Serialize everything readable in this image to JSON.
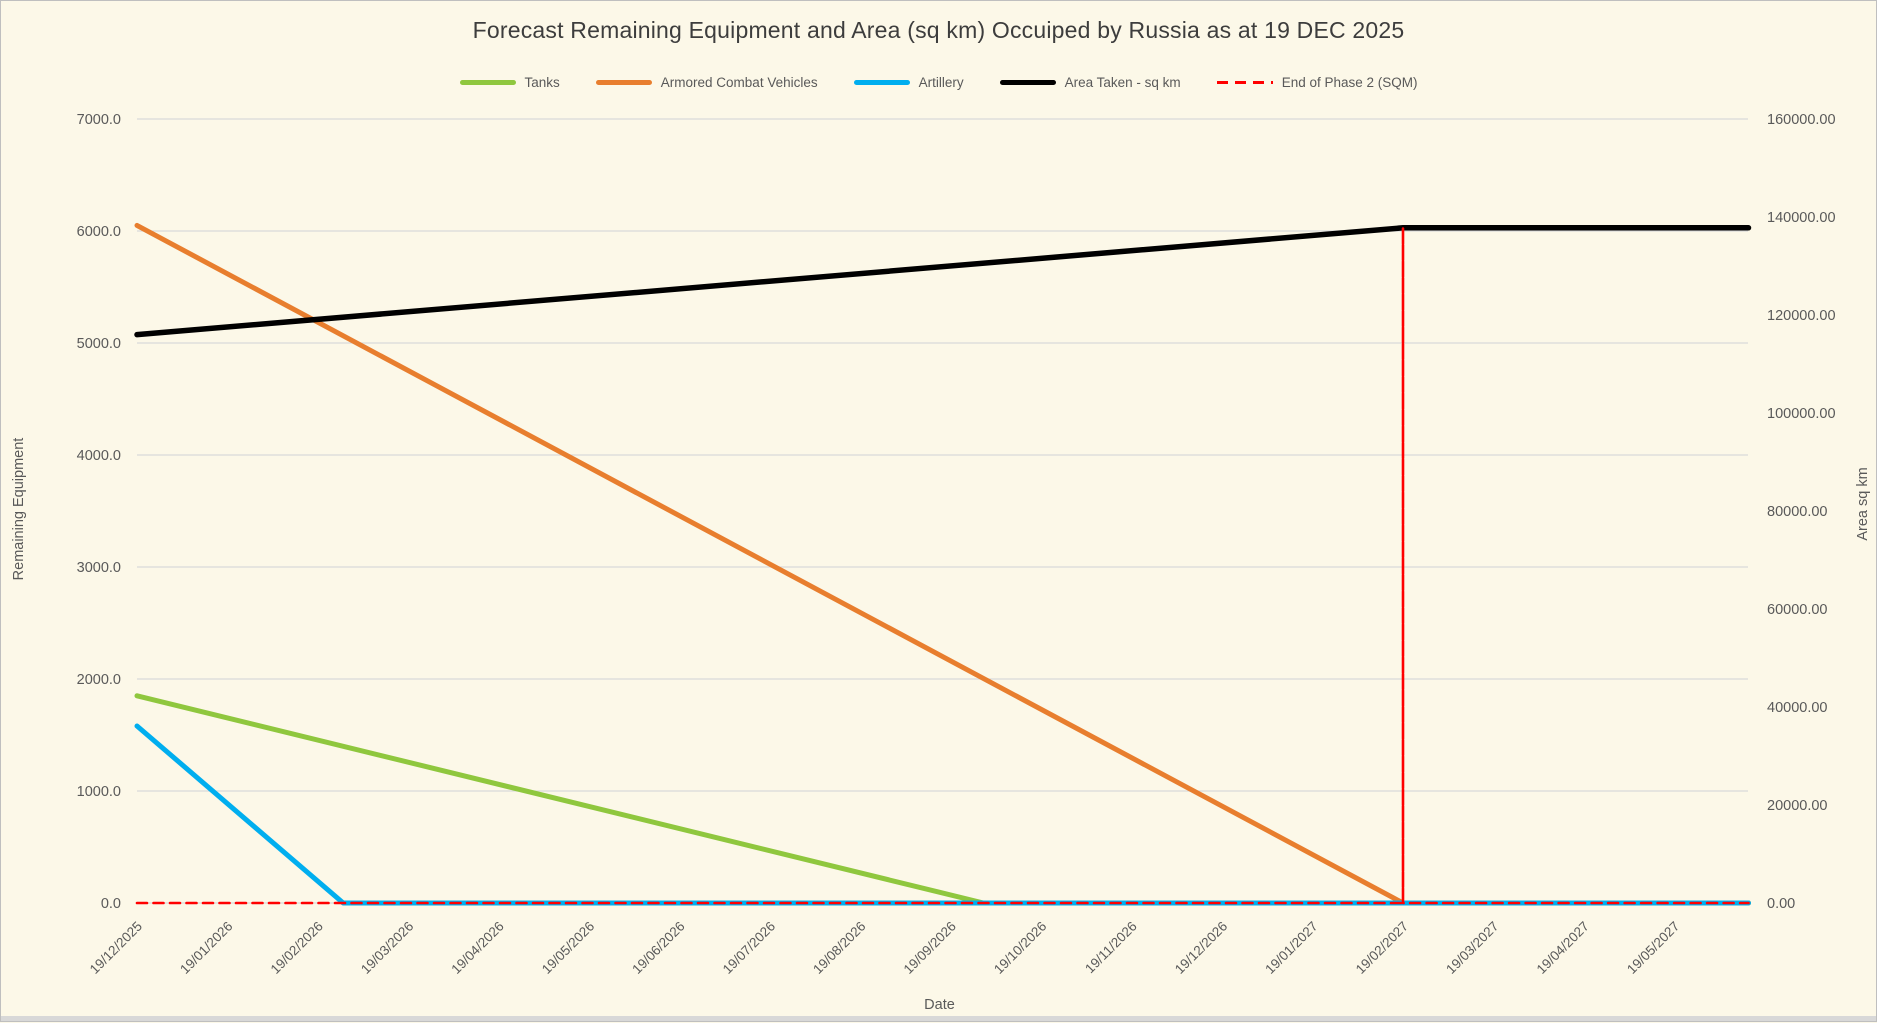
{
  "chart_data": {
    "type": "line",
    "title": "Forecast Remaining Equipment and Area (sq km) Occuiped by Russia as at 19 DEC 2025",
    "x_axis": {
      "label": "Date",
      "categories": [
        "19/12/2025",
        "19/01/2026",
        "19/02/2026",
        "19/03/2026",
        "19/04/2026",
        "19/05/2026",
        "19/06/2026",
        "19/07/2026",
        "19/08/2026",
        "19/09/2026",
        "19/10/2026",
        "19/11/2026",
        "19/12/2026",
        "19/01/2027",
        "19/02/2027",
        "19/03/2027",
        "19/04/2027",
        "19/05/2027"
      ],
      "tick_rotation_deg": -45,
      "axis_extends_months_past_last_label": 0.82
    },
    "y_left": {
      "label": "Remaining Equipment",
      "min": 0,
      "max": 7000,
      "tick_step": 1000,
      "tick_labels": [
        "0.0",
        "1000.0",
        "2000.0",
        "3000.0",
        "4000.0",
        "5000.0",
        "6000.0",
        "7000.0"
      ]
    },
    "y_right": {
      "label": "Area sq km",
      "min": 0,
      "max": 160000,
      "tick_step": 20000,
      "tick_labels": [
        "0.00",
        "20000.00",
        "40000.00",
        "60000.00",
        "80000.00",
        "100000.00",
        "120000.00",
        "140000.00",
        "160000.00"
      ]
    },
    "grid": "horizontal-only",
    "legend_position": "top",
    "series": [
      {
        "name": "Tanks",
        "axis": "left",
        "color": "#8FC73E",
        "style": "solid",
        "width": 5,
        "points_month_value": [
          [
            0,
            1850
          ],
          [
            9.36,
            0
          ],
          [
            17.82,
            0
          ]
        ],
        "description": "Linear decline from ~1850 at 19/12/2025 to 0 just after 19/09/2026, then flat at 0"
      },
      {
        "name": "Armored Combat Vehicles",
        "axis": "left",
        "color": "#E87E2E",
        "style": "solid",
        "width": 5,
        "points_month_value": [
          [
            0,
            6050
          ],
          [
            14,
            0
          ],
          [
            17.82,
            0
          ]
        ],
        "description": "Linear decline from ~6050 at 19/12/2025 to 0 at 19/02/2027, then flat at 0"
      },
      {
        "name": "Artillery",
        "axis": "left",
        "color": "#00AEEF",
        "style": "solid",
        "width": 5,
        "points_month_value": [
          [
            0,
            1580
          ],
          [
            2.28,
            0
          ],
          [
            17.82,
            0
          ]
        ],
        "description": "Linear decline from ~1580 at 19/12/2025 to 0 in late Feb 2026, then flat at 0"
      },
      {
        "name": "Area Taken - sq km",
        "axis": "right",
        "color": "#000000",
        "style": "solid",
        "width": 5.5,
        "points_month_value": [
          [
            0,
            116000
          ],
          [
            14,
            137800
          ],
          [
            17.82,
            137800
          ]
        ],
        "description": "Linear rise from ~116000 sq km at 19/12/2025 to ~137800 at 19/02/2027, then flat"
      },
      {
        "name": "End of Phase 2 (SQM)",
        "axis": "right",
        "color": "#FF0000",
        "style": "dashed",
        "width": 2.6,
        "points_month_value": [
          [
            0,
            0
          ],
          [
            14,
            0
          ],
          [
            14,
            137800
          ],
          [
            14,
            0
          ],
          [
            17.82,
            0
          ]
        ],
        "description": "Zero baseline across the chart with a vertical dashed spike to ~137800 at 19/02/2027"
      }
    ],
    "colors": {
      "background": "#FCF8E8",
      "gridline": "#D9D9D9",
      "axis_text": "#595959",
      "title_text": "#3D3D3D"
    }
  }
}
